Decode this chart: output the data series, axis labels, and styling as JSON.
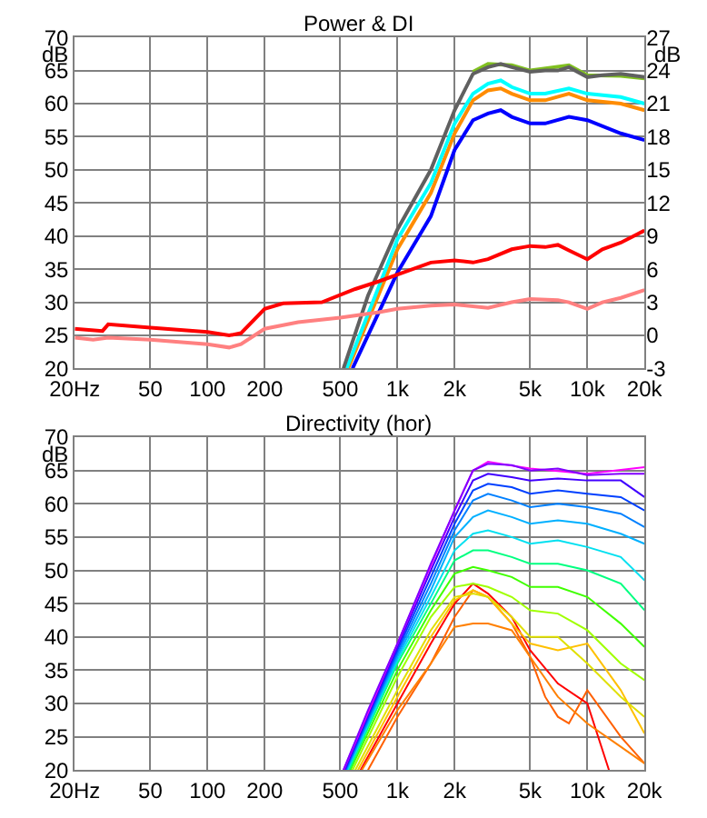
{
  "chart_data": [
    {
      "type": "line",
      "title": "Power & DI",
      "ylabel": "dB",
      "y2label": "dB",
      "log": "x",
      "grid": true,
      "xlim": [
        20,
        20000
      ],
      "xticks": [
        {
          "value": 20,
          "label": "20Hz"
        },
        50,
        100,
        200,
        500,
        {
          "value": 1000,
          "label": "1k"
        },
        {
          "value": 2000,
          "label": "2k"
        },
        {
          "value": 5000,
          "label": "5k"
        },
        {
          "value": 10000,
          "label": "10k"
        },
        {
          "value": 20000,
          "label": "20k"
        }
      ],
      "ylim": [
        20,
        70
      ],
      "yticks": [
        20,
        25,
        30,
        35,
        40,
        45,
        50,
        55,
        60,
        65,
        70
      ],
      "y2lim": [
        -3,
        27
      ],
      "y2ticks": [
        -3,
        0,
        3,
        6,
        9,
        12,
        15,
        18,
        21,
        24,
        27
      ],
      "series": [
        {
          "color": "#ff8080",
          "axis": "y2",
          "x": [
            20,
            25,
            30,
            50,
            100,
            130,
            150,
            200,
            300,
            500,
            800,
            1000,
            1500,
            2000,
            3000,
            4000,
            5000,
            7000,
            8000,
            10000,
            12000,
            15000,
            20000
          ],
          "values": [
            -0.2,
            -0.4,
            -0.2,
            -0.4,
            -0.8,
            -1.1,
            -0.8,
            0.6,
            1.2,
            1.6,
            2.1,
            2.4,
            2.7,
            2.8,
            2.5,
            3.0,
            3.3,
            3.2,
            3.0,
            2.4,
            3.0,
            3.4,
            4.1
          ]
        },
        {
          "color": "#ff0000",
          "axis": "y2",
          "x": [
            20,
            28,
            30,
            50,
            100,
            130,
            150,
            200,
            250,
            400,
            600,
            800,
            1000,
            1500,
            2000,
            2500,
            3000,
            4000,
            5000,
            6000,
            7000,
            8000,
            10000,
            12000,
            15000,
            20000
          ],
          "values": [
            0.6,
            0.4,
            1.0,
            0.7,
            0.3,
            0,
            0.2,
            2.4,
            2.9,
            3.0,
            4.2,
            4.9,
            5.5,
            6.6,
            6.8,
            6.6,
            6.9,
            7.8,
            8.1,
            8.0,
            8.2,
            7.7,
            6.9,
            7.8,
            8.4,
            9.5
          ]
        },
        {
          "color": "#0000ff",
          "x": [
            580,
            1000,
            1500,
            2000,
            2500,
            3000,
            3500,
            4000,
            5000,
            6000,
            8000,
            10000,
            15000,
            20000
          ],
          "values": [
            20,
            34.5,
            43,
            53,
            57.5,
            58.5,
            59,
            58,
            57,
            57,
            58,
            57.5,
            55.5,
            54.5
          ]
        },
        {
          "color": "#ff8c00",
          "x": [
            550,
            1000,
            1500,
            2000,
            2500,
            3000,
            3500,
            4000,
            5000,
            6000,
            8000,
            10000,
            15000,
            20000
          ],
          "values": [
            20,
            38,
            46.5,
            55.5,
            60.5,
            62,
            62.3,
            61.5,
            60.5,
            60.5,
            61.5,
            60.5,
            60,
            59
          ]
        },
        {
          "color": "#00ffff",
          "x": [
            540,
            1000,
            1500,
            2000,
            2500,
            3000,
            3500,
            4000,
            5000,
            6000,
            8000,
            10000,
            15000,
            20000
          ],
          "values": [
            20,
            39.5,
            48,
            57,
            61.5,
            63,
            63.5,
            62.5,
            61.5,
            61.5,
            62.3,
            61.5,
            61,
            60
          ]
        },
        {
          "color": "#80c020",
          "x": [
            2500,
            3000,
            4000,
            5000,
            8000,
            10000,
            15000,
            20000
          ],
          "values": [
            64.8,
            66,
            65.8,
            65,
            65.8,
            64.3,
            64.2,
            63.8
          ]
        },
        {
          "color": "#606060",
          "x": [
            520,
            700,
            1000,
            1500,
            2000,
            2500,
            3000,
            3500,
            4000,
            5000,
            6000,
            7000,
            8000,
            10000,
            12000,
            15000,
            20000
          ],
          "values": [
            20,
            31,
            41,
            50,
            59,
            64.5,
            65.5,
            66,
            65.5,
            64.8,
            65,
            65,
            65.5,
            64,
            64.3,
            64.5,
            64
          ]
        }
      ]
    },
    {
      "type": "line",
      "title": "Directivity (hor)",
      "ylabel": "dB",
      "log": "x",
      "grid": true,
      "xlim": [
        20,
        20000
      ],
      "xticks": [
        {
          "value": 20,
          "label": "20Hz"
        },
        50,
        100,
        200,
        500,
        {
          "value": 1000,
          "label": "1k"
        },
        {
          "value": 2000,
          "label": "2k"
        },
        {
          "value": 5000,
          "label": "5k"
        },
        {
          "value": 10000,
          "label": "10k"
        },
        {
          "value": 20000,
          "label": "20k"
        }
      ],
      "ylim": [
        20,
        70
      ],
      "yticks": [
        20,
        25,
        30,
        35,
        40,
        45,
        50,
        55,
        60,
        65,
        70
      ],
      "series": [
        {
          "color": "#ff6000",
          "x": [
            700,
            1000,
            1500,
            2000,
            2500,
            3000,
            4000,
            5000,
            6000,
            7000,
            8000,
            10000,
            15000,
            20000
          ],
          "values": [
            20,
            28,
            36,
            43,
            47,
            46,
            42,
            37,
            31,
            28,
            27,
            32,
            25,
            21
          ]
        },
        {
          "color": "#ff0000",
          "x": [
            640,
            1000,
            1500,
            2000,
            2500,
            3000,
            4000,
            5000,
            7000,
            10000,
            13000
          ],
          "values": [
            20,
            30,
            39,
            45,
            48,
            46.5,
            43,
            38,
            33,
            30,
            20
          ]
        },
        {
          "color": "#ff8000",
          "x": [
            650,
            1000,
            1500,
            2000,
            2500,
            3000,
            4000,
            5000,
            7000,
            10000,
            15000,
            20000
          ],
          "values": [
            20,
            29,
            36,
            41.5,
            42,
            42,
            41,
            37,
            31,
            27,
            23.5,
            21
          ]
        },
        {
          "color": "#ffc000",
          "x": [
            620,
            1000,
            1500,
            2000,
            2500,
            3000,
            4000,
            5000,
            7000,
            10000,
            15000,
            20000
          ],
          "values": [
            20,
            31,
            40,
            45.5,
            47,
            46,
            42,
            39,
            38,
            39,
            32,
            25.5
          ]
        },
        {
          "color": "#e0e000",
          "x": [
            600,
            1000,
            1500,
            2000,
            2500,
            3000,
            4000,
            5000,
            7000,
            10000,
            15000,
            20000
          ],
          "values": [
            20,
            32,
            41,
            46,
            46.5,
            46,
            43,
            40,
            40,
            36,
            31,
            28
          ]
        },
        {
          "color": "#a0ff00",
          "x": [
            580,
            1000,
            1500,
            2000,
            2500,
            3000,
            4000,
            5000,
            7000,
            10000,
            15000,
            20000
          ],
          "values": [
            20,
            34,
            43,
            47.5,
            48,
            47.5,
            46,
            44,
            43.5,
            41,
            36,
            33.5
          ]
        },
        {
          "color": "#40ff00",
          "x": [
            565,
            1000,
            1500,
            2000,
            2500,
            3000,
            4000,
            5000,
            7000,
            10000,
            15000,
            20000
          ],
          "values": [
            20,
            35,
            44,
            49.5,
            50.5,
            50,
            49,
            47.5,
            47.5,
            46,
            42,
            38.5
          ]
        },
        {
          "color": "#00ff80",
          "x": [
            555,
            1000,
            1500,
            2000,
            2500,
            3000,
            4000,
            5000,
            7000,
            10000,
            15000,
            20000
          ],
          "values": [
            20,
            36,
            45,
            51.5,
            53,
            53,
            52,
            51,
            51,
            50,
            48,
            44
          ]
        },
        {
          "color": "#00e0f0",
          "x": [
            545,
            1000,
            1500,
            2000,
            2500,
            3000,
            4000,
            5000,
            7000,
            10000,
            15000,
            20000
          ],
          "values": [
            20,
            36.5,
            46,
            53,
            55.5,
            56,
            55,
            54,
            54.5,
            53.5,
            52,
            48.5
          ]
        },
        {
          "color": "#00b0ff",
          "x": [
            540,
            1000,
            1500,
            2000,
            2500,
            3000,
            4000,
            5000,
            7000,
            10000,
            15000,
            20000
          ],
          "values": [
            20,
            37,
            47,
            55,
            58,
            59,
            58,
            57,
            57.5,
            57,
            55.5,
            54
          ]
        },
        {
          "color": "#0080ff",
          "x": [
            535,
            1000,
            1500,
            2000,
            2500,
            3000,
            4000,
            5000,
            7000,
            10000,
            15000,
            20000
          ],
          "values": [
            20,
            37.5,
            48,
            56,
            60.5,
            61.5,
            60.5,
            59.5,
            60,
            59.5,
            58.5,
            56.5
          ]
        },
        {
          "color": "#0040ff",
          "x": [
            530,
            1000,
            1500,
            2000,
            2500,
            3000,
            4000,
            5000,
            7000,
            10000,
            15000,
            20000
          ],
          "values": [
            20,
            38,
            49,
            57,
            62,
            63,
            62.5,
            61.5,
            62,
            61.5,
            61,
            59
          ]
        },
        {
          "color": "#4000ff",
          "x": [
            525,
            1000,
            1500,
            2000,
            2500,
            3000,
            4000,
            5000,
            7000,
            10000,
            15000,
            20000
          ],
          "values": [
            20,
            38.5,
            50,
            58,
            63.5,
            64.5,
            64,
            63.5,
            63.8,
            63.5,
            63.5,
            61
          ]
        },
        {
          "color": "#ff00ff",
          "x": [
            520,
            1000,
            2000,
            2500,
            3000,
            5000,
            10000,
            20000
          ],
          "values": [
            20,
            39,
            59,
            65,
            66.3,
            65.3,
            64.5,
            65.5
          ]
        },
        {
          "color": "#8000ff",
          "x": [
            520,
            700,
            1000,
            1500,
            2000,
            2500,
            3000,
            4000,
            5000,
            7000,
            10000,
            15000,
            20000
          ],
          "values": [
            20,
            29,
            39,
            51,
            59,
            65,
            66,
            65.8,
            65,
            65.3,
            64.3,
            64.5,
            64.5
          ]
        }
      ]
    }
  ]
}
